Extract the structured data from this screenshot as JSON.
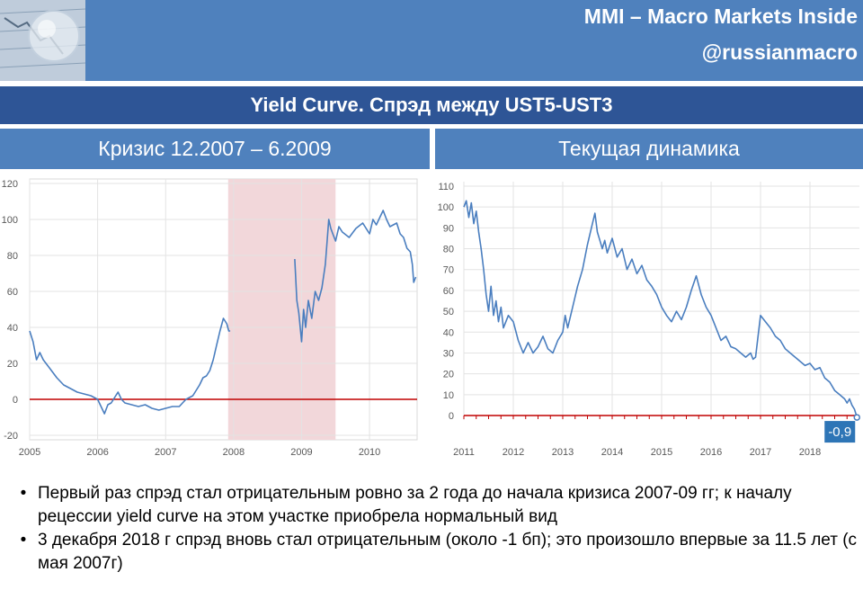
{
  "header": {
    "brand_line1": "MMI – Macro Markets Inside",
    "brand_line2": "@russianmacro",
    "accent_color": "#4f81bd",
    "dark_color": "#2e5596"
  },
  "title": "Yield Curve. Спрэд между UST5-UST3",
  "subtitles": {
    "left": "Кризис 12.2007 – 6.2009",
    "right": "Текущая динамика"
  },
  "chart_data": [
    {
      "type": "line",
      "xlabel": "",
      "ylabel": "",
      "xlim": [
        2005.0,
        2010.7
      ],
      "ylim": [
        -20,
        120
      ],
      "y_ticks": [
        -20,
        0,
        20,
        40,
        60,
        80,
        100,
        120
      ],
      "x_ticks": [
        "2005",
        "2006",
        "2007",
        "2008",
        "2009",
        "2010"
      ],
      "shaded_region": {
        "from": 2007.92,
        "to": 2009.5,
        "color": "#f2d7da"
      },
      "zero_line_color": "#c00000",
      "line_color": "#4a7ebf",
      "series": [
        {
          "x": [
            2005.0,
            2005.05,
            2005.1,
            2005.15,
            2005.2,
            2005.3,
            2005.4,
            2005.5,
            2005.6,
            2005.7,
            2005.8,
            2005.9,
            2006.0,
            2006.05,
            2006.1,
            2006.15,
            2006.2,
            2006.25,
            2006.3,
            2006.35,
            2006.4,
            2006.5,
            2006.6,
            2006.7,
            2006.8,
            2006.9,
            2007.0,
            2007.1,
            2007.2,
            2007.25,
            2007.3,
            2007.4,
            2007.5,
            2007.55,
            2007.6,
            2007.65,
            2007.7,
            2007.75,
            2007.8,
            2007.85,
            2007.9,
            2007.93,
            2007.95
          ],
          "y": [
            38,
            32,
            22,
            26,
            22,
            17,
            12,
            8,
            6,
            4,
            3,
            2,
            0,
            -4,
            -8,
            -3,
            -2,
            1,
            4,
            0,
            -2,
            -3,
            -4,
            -3,
            -5,
            -6,
            -5,
            -4,
            -4,
            -2,
            0,
            2,
            8,
            12,
            13,
            16,
            22,
            30,
            38,
            45,
            42,
            38,
            38
          ]
        },
        {
          "x": [
            2008.9,
            2008.93,
            2008.96,
            2009.0,
            2009.03,
            2009.06,
            2009.1,
            2009.15,
            2009.2,
            2009.25,
            2009.3,
            2009.35,
            2009.38,
            2009.4,
            2009.43,
            2009.46,
            2009.5,
            2009.55,
            2009.6,
            2009.7,
            2009.8,
            2009.9,
            2010.0,
            2010.05,
            2010.1,
            2010.2,
            2010.25,
            2010.3,
            2010.4,
            2010.45,
            2010.5,
            2010.55,
            2010.6,
            2010.63,
            2010.65,
            2010.68
          ],
          "y": [
            78,
            55,
            48,
            32,
            50,
            40,
            55,
            45,
            60,
            55,
            62,
            75,
            90,
            100,
            95,
            92,
            88,
            96,
            93,
            90,
            95,
            98,
            92,
            100,
            97,
            105,
            100,
            96,
            98,
            92,
            90,
            84,
            82,
            75,
            65,
            68
          ]
        }
      ]
    },
    {
      "type": "line",
      "xlabel": "",
      "ylabel": "",
      "xlim": [
        2011.0,
        2019.0
      ],
      "ylim": [
        0,
        110
      ],
      "y_ticks": [
        0,
        10,
        20,
        30,
        40,
        50,
        60,
        70,
        80,
        90,
        100,
        110
      ],
      "x_ticks": [
        "2011",
        "2012",
        "2013",
        "2014",
        "2015",
        "2016",
        "2017",
        "2018"
      ],
      "zero_line_color": "#c00000",
      "line_color": "#4a7ebf",
      "last_value_label": "-0,9",
      "last_value": -0.9,
      "series": [
        {
          "x": [
            2011.0,
            2011.05,
            2011.1,
            2011.15,
            2011.2,
            2011.25,
            2011.3,
            2011.35,
            2011.4,
            2011.45,
            2011.5,
            2011.55,
            2011.6,
            2011.65,
            2011.7,
            2011.75,
            2011.8,
            2011.9,
            2012.0,
            2012.1,
            2012.2,
            2012.3,
            2012.4,
            2012.5,
            2012.6,
            2012.7,
            2012.8,
            2012.9,
            2013.0,
            2013.05,
            2013.1,
            2013.2,
            2013.3,
            2013.4,
            2013.5,
            2013.6,
            2013.65,
            2013.7,
            2013.75,
            2013.8,
            2013.85,
            2013.9,
            2014.0,
            2014.1,
            2014.2,
            2014.3,
            2014.4,
            2014.5,
            2014.6,
            2014.7,
            2014.8,
            2014.9,
            2015.0,
            2015.1,
            2015.2,
            2015.3,
            2015.4,
            2015.5,
            2015.6,
            2015.7,
            2015.8,
            2015.9,
            2016.0,
            2016.1,
            2016.2,
            2016.3,
            2016.4,
            2016.5,
            2016.6,
            2016.7,
            2016.8,
            2016.85,
            2016.9,
            2017.0,
            2017.1,
            2017.2,
            2017.3,
            2017.4,
            2017.5,
            2017.6,
            2017.7,
            2017.8,
            2017.9,
            2018.0,
            2018.1,
            2018.2,
            2018.3,
            2018.4,
            2018.5,
            2018.6,
            2018.7,
            2018.75,
            2018.8,
            2018.85,
            2018.9,
            2018.95
          ],
          "y": [
            100,
            103,
            95,
            102,
            92,
            98,
            88,
            80,
            70,
            58,
            50,
            62,
            48,
            55,
            45,
            52,
            42,
            48,
            45,
            36,
            30,
            35,
            30,
            33,
            38,
            32,
            30,
            36,
            40,
            48,
            42,
            52,
            62,
            70,
            82,
            92,
            97,
            88,
            84,
            80,
            84,
            78,
            85,
            76,
            80,
            70,
            75,
            68,
            72,
            65,
            62,
            58,
            52,
            48,
            45,
            50,
            46,
            52,
            60,
            67,
            58,
            52,
            48,
            42,
            36,
            38,
            33,
            32,
            30,
            28,
            30,
            27,
            28,
            48,
            45,
            42,
            38,
            36,
            32,
            30,
            28,
            26,
            24,
            25,
            22,
            23,
            18,
            16,
            12,
            10,
            8,
            6,
            8,
            5,
            3,
            -0.9
          ]
        }
      ]
    }
  ],
  "bullets": [
    "Первый раз спрэд стал отрицательным ровно за 2 года до начала кризиса 2007-09 гг; к началу рецессии yield curve на этом участке приобрела нормальный вид",
    "3 декабря 2018 г спрэд вновь стал отрицательным (около -1 бп); это произошло впервые за 11.5 лет (с мая 2007г)"
  ]
}
